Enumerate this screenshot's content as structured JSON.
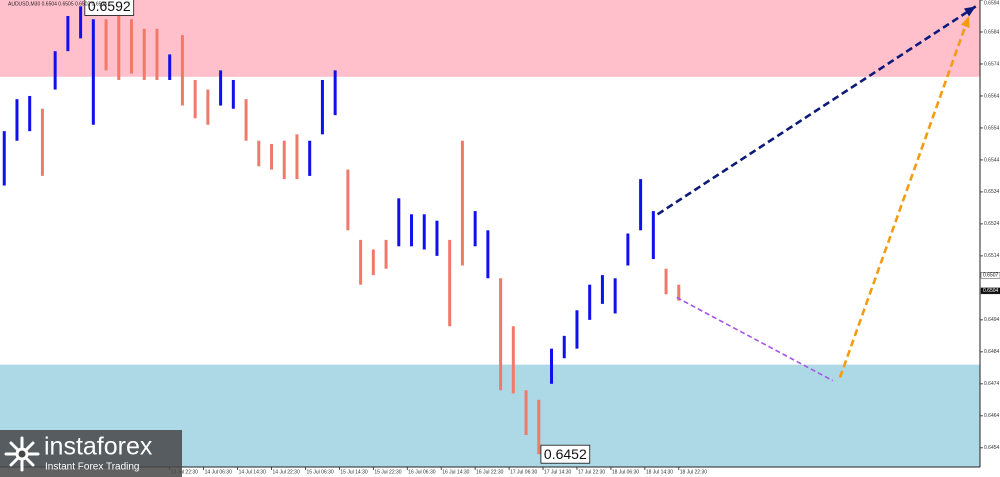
{
  "chart_data": {
    "type": "range_bar",
    "title": "AUDUSD,M30  0.6504 0.6505 0.6502 0.6504",
    "xlim": [
      0,
      231
    ],
    "ylim": [
      0.6448,
      0.6594
    ],
    "yticks": [
      0.6594,
      0.6584,
      0.6574,
      0.6564,
      0.6554,
      0.6544,
      0.6534,
      0.6524,
      0.6514,
      0.6494,
      0.6484,
      0.6474,
      0.6464,
      0.6454
    ],
    "xticks": [
      {
        "value": 40,
        "label": "13 Jul 22:30"
      },
      {
        "value": 48,
        "label": "14 Jul 06:30"
      },
      {
        "value": 56,
        "label": "14 Jul 14:30"
      },
      {
        "value": 64,
        "label": "14 Jul 22:30"
      },
      {
        "value": 72,
        "label": "15 Jul 06:30"
      },
      {
        "value": 80,
        "label": "15 Jul 14:30"
      },
      {
        "value": 88,
        "label": "15 Jul 22:30"
      },
      {
        "value": 96,
        "label": "16 Jul 06:30"
      },
      {
        "value": 104,
        "label": "16 Jul 14:30"
      },
      {
        "value": 112,
        "label": "16 Jul 22:30"
      },
      {
        "value": 120,
        "label": "17 Jul 06:30"
      },
      {
        "value": 128,
        "label": "17 Jul 14:30"
      },
      {
        "value": 136,
        "label": "17 Jul 22:30"
      },
      {
        "value": 144,
        "label": "18 Jul 06:30"
      },
      {
        "value": 152,
        "label": "18 Jul 14:30"
      },
      {
        "value": 160,
        "label": "18 Jul 22:30"
      }
    ],
    "x": [
      1,
      4,
      7,
      10,
      13,
      16,
      19,
      22,
      25,
      28,
      31,
      34,
      37,
      40,
      43,
      46,
      49,
      52,
      55,
      58,
      61,
      64,
      67,
      70,
      73,
      76,
      79,
      82,
      85,
      88,
      91,
      94,
      97,
      100,
      103,
      106,
      109,
      112,
      115,
      118,
      121,
      124,
      127,
      130,
      133,
      136,
      139,
      142,
      145,
      148,
      151,
      154,
      157,
      160
    ],
    "high": [
      0.6553,
      0.6563,
      0.6564,
      0.656,
      0.6578,
      0.6589,
      0.6592,
      0.6588,
      0.6588,
      0.6589,
      0.6588,
      0.6585,
      0.6585,
      0.6577,
      0.6583,
      0.6569,
      0.6566,
      0.6572,
      0.6569,
      0.6563,
      0.655,
      0.6549,
      0.655,
      0.6552,
      0.655,
      0.6569,
      0.6572,
      0.6541,
      0.6519,
      0.6516,
      0.6519,
      0.6532,
      0.6527,
      0.6527,
      0.6525,
      0.6519,
      0.655,
      0.6528,
      0.6522,
      0.6507,
      0.6492,
      0.6472,
      0.6469,
      0.6485,
      0.6489,
      0.6497,
      0.6505,
      0.6508,
      0.6507,
      0.6521,
      0.6538,
      0.6528,
      0.651,
      0.6505
    ],
    "low": [
      0.6536,
      0.655,
      0.6553,
      0.6539,
      0.6566,
      0.6578,
      0.6582,
      0.6555,
      0.6572,
      0.6569,
      0.6571,
      0.6569,
      0.6569,
      0.6569,
      0.6561,
      0.6557,
      0.6555,
      0.6561,
      0.656,
      0.655,
      0.6542,
      0.6541,
      0.6538,
      0.6538,
      0.6539,
      0.6552,
      0.6558,
      0.6522,
      0.6505,
      0.6508,
      0.651,
      0.6517,
      0.6517,
      0.6516,
      0.6514,
      0.6492,
      0.6511,
      0.6517,
      0.6507,
      0.6472,
      0.6471,
      0.6458,
      0.6452,
      0.6474,
      0.6482,
      0.6485,
      0.6494,
      0.6499,
      0.6496,
      0.6511,
      0.6522,
      0.6513,
      0.6502,
      0.65
    ],
    "colors": [
      "#1010ee",
      "#1010ee",
      "#1010ee",
      "#f07a6a",
      "#1010ee",
      "#1010ee",
      "#1010ee",
      "#1010ee",
      "#f07a6a",
      "#f07a6a",
      "#f07a6a",
      "#f07a6a",
      "#f07a6a",
      "#1010ee",
      "#f07a6a",
      "#f07a6a",
      "#f07a6a",
      "#1010ee",
      "#1010ee",
      "#f07a6a",
      "#f07a6a",
      "#f07a6a",
      "#f07a6a",
      "#f07a6a",
      "#1010ee",
      "#1010ee",
      "#1010ee",
      "#f07a6a",
      "#f07a6a",
      "#f07a6a",
      "#f07a6a",
      "#1010ee",
      "#1010ee",
      "#1010ee",
      "#1010ee",
      "#f07a6a",
      "#f07a6a",
      "#1010ee",
      "#1010ee",
      "#f07a6a",
      "#f07a6a",
      "#f07a6a",
      "#f07a6a",
      "#1010ee",
      "#1010ee",
      "#1010ee",
      "#1010ee",
      "#1010ee",
      "#1010ee",
      "#1010ee",
      "#1010ee",
      "#1010ee",
      "#f07a6a",
      "#f07a6a"
    ],
    "zones": [
      {
        "color": "#ffc0cb",
        "from": 0.657,
        "to": 0.6594
      },
      {
        "color": "#add8e6",
        "from": 0.6448,
        "to": 0.648
      }
    ],
    "arrows": [
      {
        "color": "#0c1a7a",
        "from": [
          155,
          0.6527
        ],
        "to": [
          230,
          0.6592
        ]
      },
      {
        "color": "#a855e8",
        "from": [
          159.5,
          0.6501
        ],
        "to": [
          196.3,
          0.6475
        ]
      },
      {
        "color": "#f39c12",
        "from": [
          198,
          0.6476
        ],
        "to": [
          228.4,
          0.6589
        ]
      }
    ],
    "annotations": [
      {
        "text": "0.6592",
        "x": 20,
        "value": 0.6592
      },
      {
        "text": "0.6452",
        "x": 127.5,
        "value": 0.6452
      }
    ],
    "price_labels": [
      {
        "text": "0.6507",
        "value": 0.6507
      },
      {
        "text": "0.6504",
        "value": 0.6504
      }
    ],
    "brand": {
      "name": "instaforex",
      "tagline": "Instant Forex Trading"
    }
  }
}
